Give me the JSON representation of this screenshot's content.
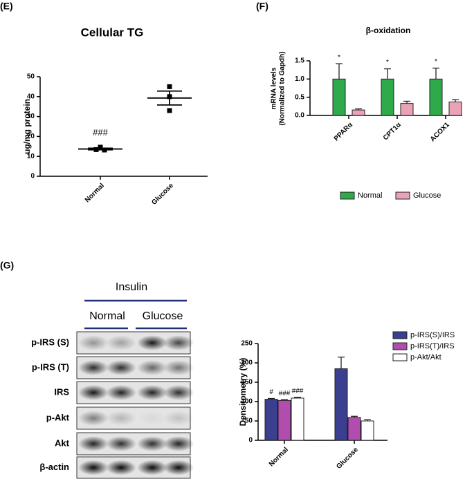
{
  "chart_data": [
    {
      "panel": "(E)",
      "type": "dot",
      "title": "Cellular TG",
      "y_label": [
        "ug/mg protein"
      ],
      "categories": [
        "Normal",
        "Glucose"
      ],
      "points": [
        [
          13.4,
          14.6,
          13.2
        ],
        [
          45,
          40,
          33
        ]
      ],
      "means": [
        13.7,
        39.3
      ],
      "errors": [
        0.4,
        3.5
      ],
      "annotations": [
        "###",
        null
      ],
      "color": "#000000",
      "ylim": [
        0,
        50
      ],
      "yticks": [
        0,
        10,
        20,
        30,
        40,
        50
      ]
    },
    {
      "panel": "(F)",
      "type": "bar",
      "title": "β-oxidation",
      "y_label": [
        "mRNA levels",
        "(Normalized to Gapdh)"
      ],
      "categories": [
        "PPARα",
        "CPT1α",
        "ACOX1"
      ],
      "series": [
        {
          "name": "Normal",
          "color": "#2eaa4a",
          "values": [
            1.0,
            1.0,
            1.0
          ],
          "errors": [
            0.42,
            0.28,
            0.3
          ],
          "annotations": [
            "*",
            "*",
            "*"
          ]
        },
        {
          "name": "Glucose",
          "color": "#e9a2b6",
          "values": [
            0.15,
            0.33,
            0.37
          ],
          "errors": [
            0.03,
            0.06,
            0.06
          ]
        }
      ],
      "ylim": [
        0,
        1.5
      ],
      "yticks": [
        {
          "value": 0,
          "label": "0.0"
        },
        0.5,
        {
          "value": 1,
          "label": "1.0"
        },
        1.5
      ],
      "legend": "bottom"
    },
    {
      "panel": "(G)",
      "type": "bar",
      "y_label": [
        "Densitometry (%)"
      ],
      "categories": [
        "Normal",
        "Glucose"
      ],
      "series": [
        {
          "name": "p-IRS(S)/IRS",
          "color": "#3a3f8f",
          "values": [
            106,
            185
          ],
          "errors": [
            2,
            30
          ],
          "annotations": [
            "#",
            null
          ]
        },
        {
          "name": "p-IRS(T)/IRS",
          "color": "#b24db0",
          "values": [
            103,
            59
          ],
          "errors": [
            2,
            3
          ],
          "annotations": [
            "###",
            null
          ]
        },
        {
          "name": "p-Akt/Akt",
          "color": "#ffffff",
          "values": [
            109,
            50
          ],
          "errors": [
            2,
            3
          ],
          "annotations": [
            "###",
            null
          ]
        }
      ],
      "ylim": [
        0,
        250
      ],
      "yticks": [
        0,
        50,
        100,
        150,
        200,
        250
      ],
      "legend": "top-right"
    }
  ],
  "blot": {
    "treatment": "Insulin",
    "groups": [
      "Normal",
      "Glucose"
    ],
    "rows": [
      "p-IRS (S)",
      "p-IRS (T)",
      "IRS",
      "p-Akt",
      "Akt",
      "β-actin"
    ]
  }
}
